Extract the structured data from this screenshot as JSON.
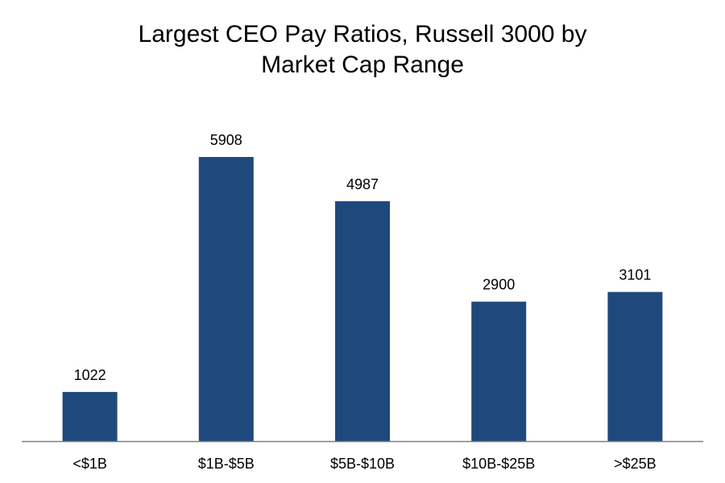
{
  "chart_data": {
    "type": "bar",
    "title_lines": [
      "Largest CEO Pay Ratios, Russell 3000 by",
      "Market Cap Range"
    ],
    "categories": [
      "<$1B",
      "$1B-$5B",
      "$5B-$10B",
      "$10B-$25B",
      ">$25B"
    ],
    "values": [
      1022,
      5908,
      4987,
      2900,
      3101
    ],
    "data_labels": [
      "1022",
      "5908",
      "4987",
      "2900",
      "3101"
    ],
    "xlabel": "",
    "ylabel": "",
    "ylim": [
      0,
      7000
    ],
    "grid": false,
    "legend": "none"
  },
  "colors": {
    "bar": "#1f497d",
    "axis": "#7f7f7f",
    "text": "#000000"
  }
}
